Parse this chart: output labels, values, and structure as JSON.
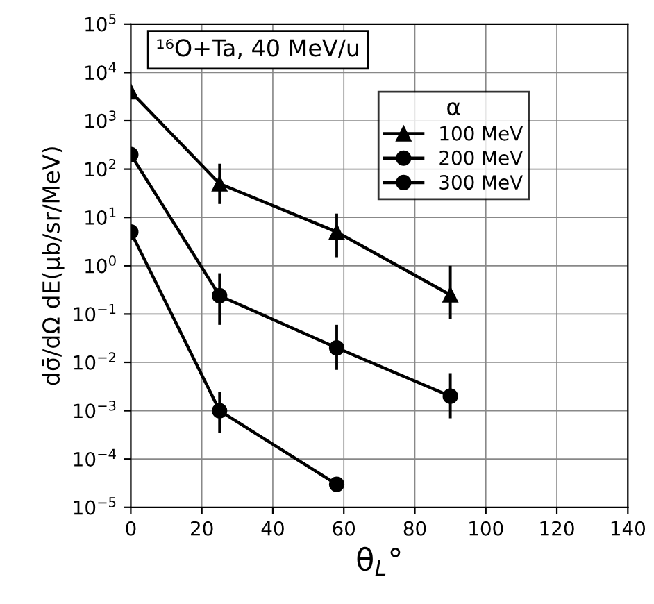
{
  "chart_data": {
    "type": "line",
    "xlabel": "θ$_{L}$°",
    "ylabel": "dσ̄/dΩ dE(μb/sr/MeV)",
    "annotations": [
      "¹⁶O+Ta, 40 MeV/u"
    ],
    "legend_title": "α",
    "legend": "top right",
    "log": "y",
    "grid": true,
    "xlim": [
      0,
      140
    ],
    "xticks": [
      0,
      20,
      40,
      60,
      80,
      100,
      120,
      140
    ],
    "ylim": [
      1e-05,
      100000.0
    ],
    "yticks": [
      {
        "value": 1e-05,
        "label": "10$^{−5}$"
      },
      {
        "value": 0.0001,
        "label": "10$^{−4}$"
      },
      {
        "value": 0.001,
        "label": "10$^{−3}$"
      },
      {
        "value": 0.01,
        "label": "10$^{−2}$"
      },
      {
        "value": 0.1,
        "label": "10$^{−1}$"
      },
      {
        "value": 1,
        "label": "10$^{0}$"
      },
      {
        "value": 10,
        "label": "10$^{1}$"
      },
      {
        "value": 100,
        "label": "10$^{2}$"
      },
      {
        "value": 1000,
        "label": "10$^{3}$"
      },
      {
        "value": 10000,
        "label": "10$^{4}$"
      },
      {
        "value": 100000,
        "label": "10$^{5}$"
      }
    ],
    "series": [
      {
        "name": "100 MeV",
        "color": "#000000",
        "marker": "triangle",
        "x": [
          0,
          25,
          58,
          90
        ],
        "values": [
          4000,
          50,
          5,
          0.25
        ],
        "errors": [
          null,
          [
            19,
            130
          ],
          [
            1.5,
            12
          ],
          [
            0.08,
            1
          ]
        ]
      },
      {
        "name": "200 MeV",
        "color": "#000000",
        "marker": "circle",
        "x": [
          0,
          25,
          58,
          90
        ],
        "values": [
          200,
          0.24,
          0.02,
          0.002
        ],
        "errors": [
          null,
          [
            0.06,
            0.7
          ],
          [
            0.007,
            0.06
          ],
          [
            0.0007,
            0.006
          ]
        ]
      },
      {
        "name": "300 MeV",
        "color": "#000000",
        "marker": "circle",
        "x": [
          0,
          25,
          58
        ],
        "values": [
          5,
          0.001,
          3e-05
        ],
        "errors": [
          null,
          [
            0.00035,
            0.0025
          ],
          null
        ]
      }
    ]
  }
}
